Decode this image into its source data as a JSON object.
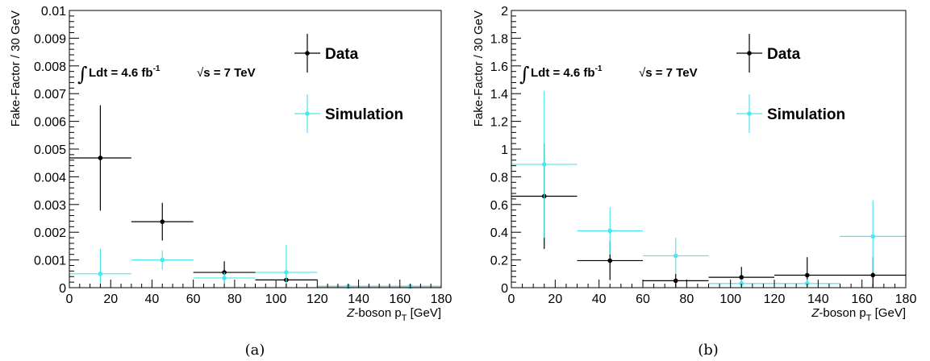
{
  "chart_data": [
    {
      "type": "scatter",
      "panel_label": "(a)",
      "ylabel": "Fake-Factor / 30 GeV",
      "xlabel": {
        "italic": "Z",
        "main": "-boson p",
        "sub": "T",
        "unit": "[GeV]"
      },
      "xlim": [
        0,
        180
      ],
      "ylim": [
        0,
        0.01
      ],
      "x_ticks": [
        0,
        20,
        40,
        60,
        80,
        100,
        120,
        140,
        160,
        180
      ],
      "y_ticks": [
        0,
        0.001,
        0.002,
        0.003,
        0.004,
        0.005,
        0.006,
        0.007,
        0.008,
        0.009,
        0.01
      ],
      "y_tick_labels": [
        "0",
        "0.001",
        "0.002",
        "0.003",
        "0.004",
        "0.005",
        "0.006",
        "0.007",
        "0.008",
        "0.009",
        "0.01"
      ],
      "annotation": {
        "lumi": "Ldt = 4.6 fb",
        "lumi_sup": "-1",
        "energy": "s = 7 TeV",
        "integral": "∫",
        "sqrt": "√"
      },
      "legend": [
        {
          "label": "Data",
          "color": "#000000"
        },
        {
          "label": "Simulation",
          "color": "#4ce6f0"
        }
      ],
      "series": [
        {
          "name": "Data",
          "color": "#000000",
          "x": [
            15,
            45,
            75,
            105,
            135,
            165
          ],
          "xerr": [
            15,
            15,
            15,
            15,
            15,
            15
          ],
          "y": [
            0.00468,
            0.00238,
            0.00055,
            0.00028,
            2e-05,
            2e-05
          ],
          "yerr": [
            0.0019,
            0.00068,
            0.0004,
            0.00028,
            2e-05,
            2e-05
          ]
        },
        {
          "name": "Simulation",
          "color": "#4ce6f0",
          "x": [
            15,
            45,
            75,
            105,
            135,
            165
          ],
          "xerr": [
            15,
            15,
            15,
            15,
            15,
            15
          ],
          "y": [
            0.0005,
            0.001,
            0.00035,
            0.00055,
            1e-05,
            1e-05
          ],
          "yerr": [
            0.0009,
            0.00035,
            0.0002,
            0.001,
            1e-05,
            1e-05
          ]
        }
      ]
    },
    {
      "type": "scatter",
      "panel_label": "(b)",
      "ylabel": "Fake-Factor / 30 GeV",
      "xlabel": {
        "italic": "Z",
        "main": "-boson p",
        "sub": "T",
        "unit": "[GeV]"
      },
      "xlim": [
        0,
        180
      ],
      "ylim": [
        0,
        2
      ],
      "x_ticks": [
        0,
        20,
        40,
        60,
        80,
        100,
        120,
        140,
        160,
        180
      ],
      "y_ticks": [
        0,
        0.2,
        0.4,
        0.6,
        0.8,
        1,
        1.2,
        1.4,
        1.6,
        1.8,
        2
      ],
      "y_tick_labels": [
        "0",
        "0.2",
        "0.4",
        "0.6",
        "0.8",
        "1",
        "1.2",
        "1.4",
        "1.6",
        "1.8",
        "2"
      ],
      "annotation": {
        "lumi": "Ldt = 4.6 fb",
        "lumi_sup": "-1",
        "energy": "s = 7 TeV",
        "integral": "∫",
        "sqrt": "√"
      },
      "legend": [
        {
          "label": "Data",
          "color": "#000000"
        },
        {
          "label": "Simulation",
          "color": "#4ce6f0"
        }
      ],
      "series": [
        {
          "name": "Data",
          "color": "#000000",
          "x": [
            15,
            45,
            75,
            105,
            135,
            165
          ],
          "xerr": [
            15,
            15,
            15,
            15,
            15,
            15
          ],
          "y": [
            0.66,
            0.195,
            0.05,
            0.075,
            0.09,
            0.09
          ],
          "yerr": [
            0.38,
            0.14,
            0.05,
            0.075,
            0.13,
            0.13
          ]
        },
        {
          "name": "Simulation",
          "color": "#4ce6f0",
          "x": [
            15,
            45,
            75,
            105,
            135,
            165
          ],
          "xerr": [
            15,
            15,
            15,
            15,
            15,
            15
          ],
          "y": [
            0.89,
            0.41,
            0.23,
            0.03,
            0.03,
            0.37
          ],
          "yerr": [
            0.53,
            0.17,
            0.13,
            0.03,
            0.03,
            0.26
          ]
        }
      ]
    }
  ]
}
